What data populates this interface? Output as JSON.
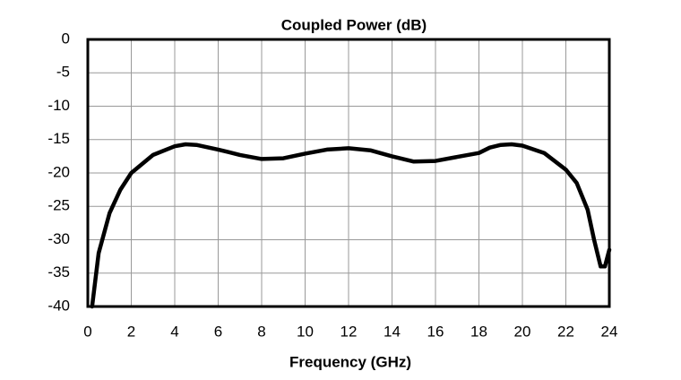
{
  "chart_data": {
    "type": "line",
    "title": "Coupled Power (dB)",
    "x_label": "Frequency (GHz)",
    "x": [
      0.2,
      0.5,
      1,
      1.5,
      2,
      3,
      4,
      4.5,
      5,
      6,
      7,
      8,
      9,
      10,
      11,
      12,
      13,
      14,
      15,
      16,
      17,
      18,
      18.5,
      19,
      19.5,
      20,
      21,
      22,
      22.5,
      23,
      23.3,
      23.6,
      23.8,
      24
    ],
    "series": [
      {
        "color": "#000000",
        "values": [
          -40,
          -32,
          -26,
          -22.5,
          -20,
          -17.3,
          -16,
          -15.7,
          -15.8,
          -16.5,
          -17.3,
          -17.9,
          -17.8,
          -17.1,
          -16.5,
          -16.3,
          -16.6,
          -17.5,
          -18.3,
          -18.2,
          -17.6,
          -17,
          -16.2,
          -15.8,
          -15.7,
          -15.9,
          -17,
          -19.5,
          -21.5,
          -25.5,
          -30,
          -34,
          -34,
          -31.5
        ]
      }
    ],
    "xlim": [
      0,
      24
    ],
    "xticks": [
      0,
      2,
      4,
      6,
      8,
      10,
      12,
      14,
      16,
      18,
      20,
      22,
      24
    ],
    "ylim": [
      -40,
      0
    ],
    "yticks": [
      0,
      -5,
      -10,
      -15,
      -20,
      -25,
      -30,
      -35,
      -40
    ],
    "grid": true
  }
}
